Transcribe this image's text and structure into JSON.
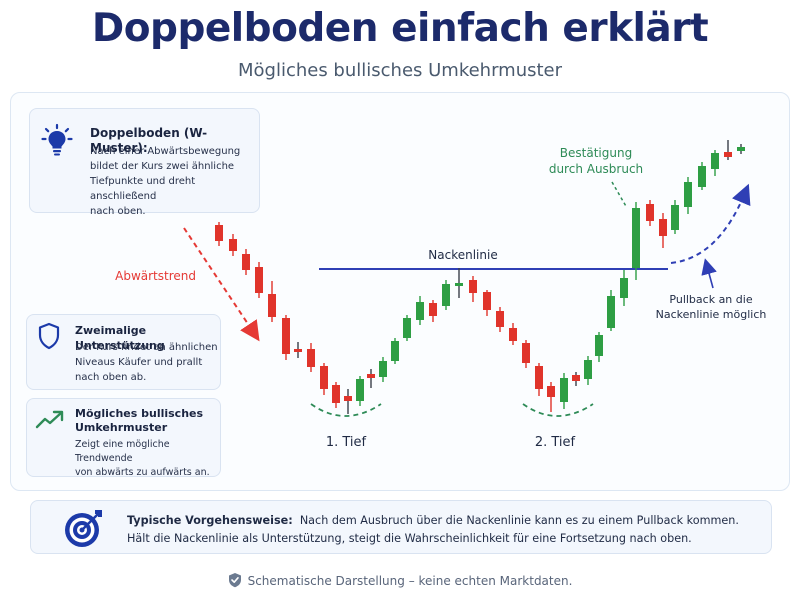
{
  "header": {
    "title": "Doppelboden einfach erklärt",
    "subtitle": "Mögliches bullisches Umkehrmuster"
  },
  "cards": {
    "definition": {
      "icon": "lightbulb-icon",
      "title": "Doppelboden (W-Muster):",
      "lines": [
        "Nach einer Abwärtsbewegung",
        "bildet der Kurs zwei ähnliche",
        "Tiefpunkte und dreht anschließend",
        "nach oben."
      ]
    },
    "support": {
      "icon": "shield-icon",
      "title": "Zweimalige Unterstützung",
      "lines": [
        "Der Kurs findet an ähnlichen",
        "Niveaus Käufer und prallt",
        "nach oben ab."
      ]
    },
    "reversal": {
      "icon": "trend-up-icon",
      "title_lines": [
        "Mögliches bullisches",
        "Umkehrmuster"
      ],
      "lines": [
        "Zeigt eine mögliche Trendwende",
        "von abwärts zu aufwärts an."
      ]
    }
  },
  "chart": {
    "labels": {
      "downtrend": "Abwärtstrend",
      "neckline": "Nackenlinie",
      "confirmation_line1": "Bestätigung",
      "confirmation_line2": "durch Ausbruch",
      "pullback_line1": "Pullback an die",
      "pullback_line2": "Nackenlinie möglich",
      "low1": "1. Tief",
      "low2": "2. Tief"
    },
    "colors": {
      "bull": "#2e9e44",
      "bear": "#e0342b",
      "neckline": "#2f3fb5",
      "downtrend": "#e53935",
      "pullback": "#2f3fb5",
      "low_arc": "#2e8b57"
    }
  },
  "bottom": {
    "icon": "target-icon",
    "heading": "Typische Vorgehensweise:",
    "line1": "Nach dem Ausbruch über die Nackenlinie kann es zu einem Pullback kommen.",
    "line2": "Hält die Nackenlinie als Unterstützung, steigt die Wahrscheinlichkeit für eine Fortsetzung nach oben."
  },
  "footer": {
    "icon": "shield-check-icon",
    "text": "Schematische Darstellung – keine echten Marktdaten."
  }
}
